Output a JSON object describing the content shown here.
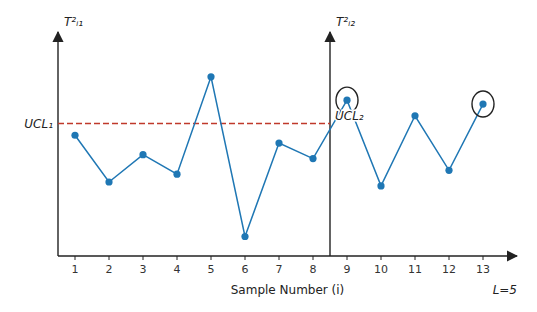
{
  "chart_data": {
    "type": "line",
    "x": [
      1,
      2,
      3,
      4,
      5,
      6,
      7,
      8,
      9,
      10,
      11,
      12,
      13
    ],
    "values": [
      0.62,
      0.38,
      0.52,
      0.42,
      0.92,
      0.1,
      0.58,
      0.5,
      0.8,
      0.36,
      0.72,
      0.44,
      0.78
    ],
    "xlim": [
      0.5,
      14.0
    ],
    "ylim": [
      0.0,
      1.15
    ],
    "xticks": [
      1,
      2,
      3,
      4,
      5,
      6,
      7,
      8,
      9,
      10,
      11,
      12,
      13
    ],
    "tick_labels": "x",
    "grid": false,
    "marker": "circle",
    "xlabel": "Sample Number (i)",
    "ylabel": "T²ᵢ₁",
    "ylabel_right": "T²ᵢ₂",
    "ucl": 0.68,
    "ucl_labels": [
      "UCL₁",
      "UCL₂"
    ],
    "phase_split_x": 8.5,
    "circled_x": [
      9,
      13
    ],
    "annotations": [
      "L=5"
    ]
  }
}
